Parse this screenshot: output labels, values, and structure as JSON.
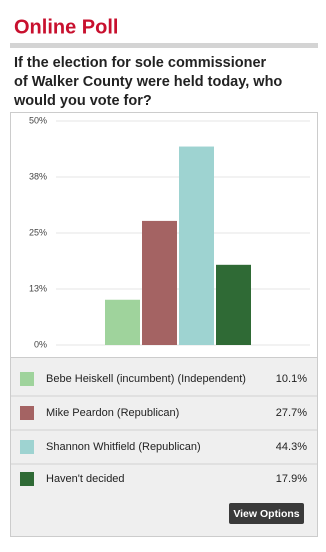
{
  "header": {
    "title": "Online Poll"
  },
  "question": "If the election for sole commissioner of Walker County were held today, who would you vote for?",
  "chart_data": {
    "type": "bar",
    "categories": [
      "Bebe Heiskell (incumbent) (Independent)",
      "Mike Peardon (Republican)",
      "Shannon Whitfield (Republican)",
      "Haven't decided"
    ],
    "values": [
      10.1,
      27.7,
      44.3,
      17.9
    ],
    "value_labels": [
      "10.1%",
      "27.7%",
      "44.3%",
      "17.9%"
    ],
    "colors": [
      "#9fd39c",
      "#a46363",
      "#9ed3d1",
      "#2f6a35"
    ],
    "ylim": [
      0,
      50
    ],
    "yticks": [
      {
        "value": 0,
        "label": "0%"
      },
      {
        "value": 12.5,
        "label": "13%"
      },
      {
        "value": 25,
        "label": "25%"
      },
      {
        "value": 37.5,
        "label": "38%"
      },
      {
        "value": 50,
        "label": "50%"
      }
    ],
    "grid": true
  },
  "button": "View Options"
}
